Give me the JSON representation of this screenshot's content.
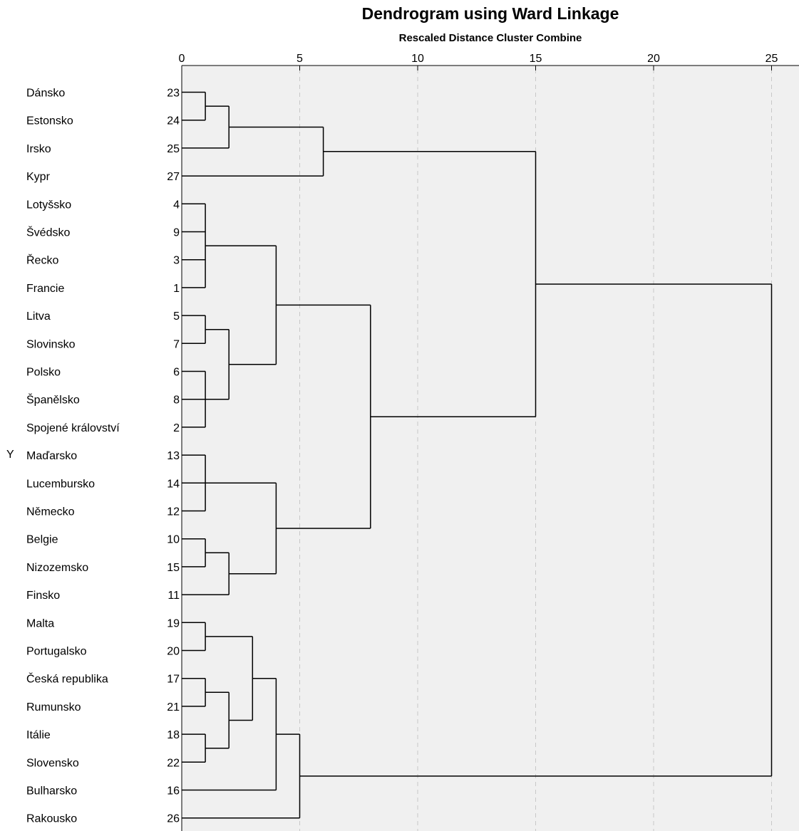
{
  "chart_data": {
    "type": "dendrogram",
    "title": "Dendrogram using Ward Linkage",
    "subtitle": "Rescaled Distance Cluster Combine",
    "y_axis_label": "Y",
    "x_ticks": [
      0,
      5,
      10,
      15,
      20,
      25
    ],
    "xlim": [
      0,
      25
    ],
    "grid": true,
    "leaves": [
      {
        "name": "Dánsko",
        "id": "23"
      },
      {
        "name": "Estonsko",
        "id": "24"
      },
      {
        "name": "Irsko",
        "id": "25"
      },
      {
        "name": "Kypr",
        "id": "27"
      },
      {
        "name": "Lotyšsko",
        "id": "4"
      },
      {
        "name": "Švédsko",
        "id": "9"
      },
      {
        "name": "Řecko",
        "id": "3"
      },
      {
        "name": "Francie",
        "id": "1"
      },
      {
        "name": "Litva",
        "id": "5"
      },
      {
        "name": "Slovinsko",
        "id": "7"
      },
      {
        "name": "Polsko",
        "id": "6"
      },
      {
        "name": "Španělsko",
        "id": "8"
      },
      {
        "name": "Spojené království",
        "id": "2"
      },
      {
        "name": "Maďarsko",
        "id": "13"
      },
      {
        "name": "Lucembursko",
        "id": "14"
      },
      {
        "name": "Německo",
        "id": "12"
      },
      {
        "name": "Belgie",
        "id": "10"
      },
      {
        "name": "Nizozemsko",
        "id": "15"
      },
      {
        "name": "Finsko",
        "id": "11"
      },
      {
        "name": "Malta",
        "id": "19"
      },
      {
        "name": "Portugalsko",
        "id": "20"
      },
      {
        "name": "Česká republika",
        "id": "17"
      },
      {
        "name": "Rumunsko",
        "id": "21"
      },
      {
        "name": "Itálie",
        "id": "18"
      },
      {
        "name": "Slovensko",
        "id": "22"
      },
      {
        "name": "Bulharsko",
        "id": "16"
      },
      {
        "name": "Rakousko",
        "id": "26"
      }
    ],
    "merges": [
      {
        "id": "A",
        "children": [
          "L0",
          "L1"
        ],
        "height": 1
      },
      {
        "id": "B",
        "children": [
          "A",
          "L2"
        ],
        "height": 2
      },
      {
        "id": "C",
        "children": [
          "B",
          "L3"
        ],
        "height": 6
      },
      {
        "id": "D",
        "children": [
          "L4",
          "L5",
          "L6",
          "L7"
        ],
        "height": 1
      },
      {
        "id": "E",
        "children": [
          "L8",
          "L9"
        ],
        "height": 1
      },
      {
        "id": "F",
        "children": [
          "L10",
          "L11",
          "L12"
        ],
        "height": 1
      },
      {
        "id": "G",
        "children": [
          "E",
          "F"
        ],
        "height": 2
      },
      {
        "id": "H",
        "children": [
          "D",
          "G"
        ],
        "height": 4
      },
      {
        "id": "I",
        "children": [
          "L13",
          "L14",
          "L15"
        ],
        "height": 1
      },
      {
        "id": "J",
        "children": [
          "L16",
          "L17"
        ],
        "height": 1
      },
      {
        "id": "K",
        "children": [
          "J",
          "L18"
        ],
        "height": 2
      },
      {
        "id": "M",
        "children": [
          "I",
          "K"
        ],
        "height": 4
      },
      {
        "id": "N",
        "children": [
          "H",
          "M"
        ],
        "height": 8
      },
      {
        "id": "O",
        "children": [
          "C",
          "N"
        ],
        "height": 15
      },
      {
        "id": "P",
        "children": [
          "L19",
          "L20"
        ],
        "height": 1
      },
      {
        "id": "Q",
        "children": [
          "L21",
          "L22"
        ],
        "height": 1
      },
      {
        "id": "R",
        "children": [
          "L23",
          "L24"
        ],
        "height": 1
      },
      {
        "id": "S",
        "children": [
          "Q",
          "R"
        ],
        "height": 2
      },
      {
        "id": "T",
        "children": [
          "P",
          "S"
        ],
        "height": 3
      },
      {
        "id": "U",
        "children": [
          "T",
          "L25"
        ],
        "height": 4
      },
      {
        "id": "V",
        "children": [
          "U",
          "L26"
        ],
        "height": 5
      },
      {
        "id": "W",
        "children": [
          "O",
          "V"
        ],
        "height": 25
      }
    ],
    "colors": {
      "background": "#f0f0f0",
      "line": "#000000",
      "grid": "#c8c8c8"
    }
  }
}
